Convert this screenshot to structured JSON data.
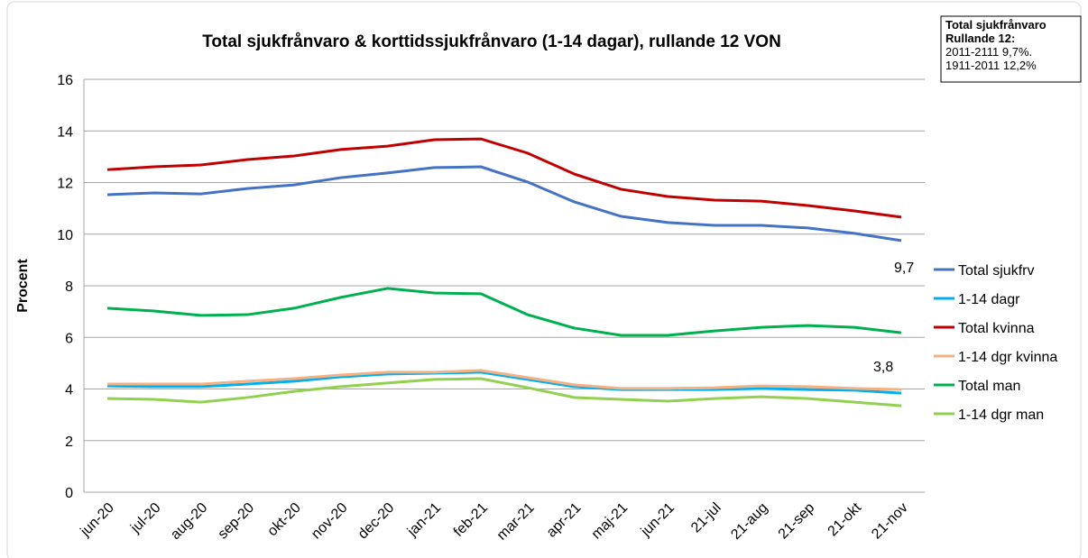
{
  "chart_data": {
    "type": "line",
    "title": "Total sjukfrånvaro & korttidssjukfrånvaro (1-14 dagar), rullande 12 VON",
    "y_label": "Procent",
    "categories": [
      "jun-20",
      "jul-20",
      "aug-20",
      "sep-20",
      "okt-20",
      "nov-20",
      "dec-20",
      "jan-21",
      "feb-21",
      "mar-21",
      "apr-21",
      "maj-21",
      "jun-21",
      "21-jul",
      "21-aug",
      "21-sep",
      "21-okt",
      "21-nov"
    ],
    "series": [
      {
        "name": "Total sjukfrv",
        "color": "#4472c4",
        "values": [
          11.53,
          11.6,
          11.56,
          11.77,
          11.91,
          12.19,
          12.37,
          12.58,
          12.61,
          12.02,
          11.25,
          10.69,
          10.45,
          10.34,
          10.34,
          10.24,
          10.03,
          9.75
        ]
      },
      {
        "name": "1-14 dagr",
        "color": "#00b0f0",
        "values": [
          4.12,
          4.09,
          4.09,
          4.19,
          4.3,
          4.47,
          4.58,
          4.61,
          4.65,
          4.37,
          4.09,
          3.98,
          3.98,
          3.98,
          4.02,
          3.98,
          3.95,
          3.84
        ]
      },
      {
        "name": "Total kvinna",
        "color": "#c00000",
        "values": [
          12.5,
          12.61,
          12.68,
          12.89,
          13.03,
          13.28,
          13.41,
          13.66,
          13.69,
          13.14,
          12.33,
          11.74,
          11.46,
          11.32,
          11.28,
          11.11,
          10.9,
          10.66
        ]
      },
      {
        "name": "1-14 dgr kvinna",
        "color": "#f4b183",
        "values": [
          4.19,
          4.19,
          4.19,
          4.3,
          4.4,
          4.54,
          4.65,
          4.65,
          4.72,
          4.44,
          4.16,
          4.02,
          4.02,
          4.05,
          4.12,
          4.09,
          4.02,
          3.98
        ]
      },
      {
        "name": "Total man",
        "color": "#00b050",
        "values": [
          7.13,
          7.02,
          6.85,
          6.88,
          7.13,
          7.55,
          7.9,
          7.72,
          7.69,
          6.88,
          6.36,
          6.08,
          6.08,
          6.25,
          6.39,
          6.46,
          6.39,
          6.18
        ]
      },
      {
        "name": "1-14 dgr man",
        "color": "#92d050",
        "values": [
          3.63,
          3.6,
          3.49,
          3.67,
          3.91,
          4.09,
          4.23,
          4.37,
          4.4,
          4.05,
          3.67,
          3.6,
          3.53,
          3.63,
          3.7,
          3.63,
          3.49,
          3.35
        ]
      }
    ],
    "annotations": [
      "9,7",
      "3,8"
    ],
    "info_box": [
      "Total sjukfrånvaro",
      "Rullande 12:",
      "2011-2111 9,7%.",
      "1911-2011 12,2%"
    ],
    "ylim": [
      0,
      16
    ],
    "yticks": [
      0,
      2,
      4,
      6,
      8,
      10,
      12,
      14,
      16
    ],
    "grid": true,
    "legend": "right"
  }
}
